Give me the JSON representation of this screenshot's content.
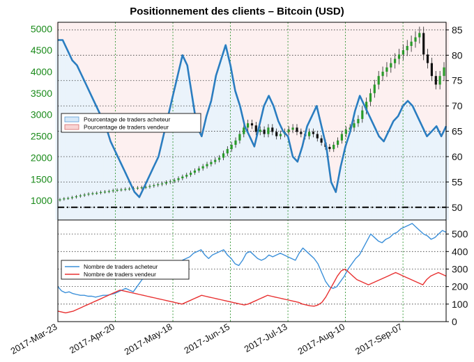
{
  "chart_data": [
    {
      "type": "candlestick",
      "title": "Positionnement des clients – Bitcoin (USD)",
      "price_axis": {
        "side": "left",
        "ticks": [
          1000,
          1500,
          2000,
          2500,
          3000,
          3500,
          4000,
          4500,
          5000
        ],
        "range": [
          550,
          5150
        ],
        "color": "#1a8a1a"
      },
      "percent_axis": {
        "side": "right",
        "ticks": [
          50,
          55,
          60,
          65,
          70,
          75,
          80,
          85
        ],
        "range": [
          47.5,
          86.5
        ]
      },
      "x_tick_labels": [
        "2017-Mar-23",
        "2017-Apr-20",
        "2017-May-18",
        "2017-Jun-15",
        "2017-Jul-13",
        "2017-Aug-10",
        "2017-Sep-07"
      ],
      "grid": true,
      "legend": {
        "position": "middle-left",
        "entries": [
          "Pourcentage de traders acheteur",
          "Pourcentage de traders vendeur"
        ]
      },
      "reference_line": 50,
      "price_close": [
        1030,
        1050,
        1060,
        1080,
        1100,
        1120,
        1140,
        1160,
        1170,
        1180,
        1200,
        1210,
        1220,
        1240,
        1250,
        1260,
        1270,
        1280,
        1290,
        1300,
        1310,
        1320,
        1340,
        1360,
        1380,
        1400,
        1430,
        1450,
        1480,
        1520,
        1560,
        1600,
        1650,
        1700,
        1750,
        1800,
        1850,
        1900,
        1950,
        2000,
        2100,
        2200,
        2300,
        2400,
        2550,
        2700,
        2800,
        2750,
        2600,
        2650,
        2550,
        2700,
        2600,
        2500,
        2550,
        2600,
        2650,
        2700,
        2600,
        2550,
        2500,
        2600,
        2550,
        2450,
        2350,
        2250,
        2200,
        2300,
        2400,
        2550,
        2650,
        2700,
        2800,
        2900,
        3100,
        3300,
        3500,
        3700,
        3900,
        4000,
        4100,
        4200,
        4300,
        4400,
        4500,
        4600,
        4700,
        4800,
        4900,
        4400,
        4200,
        3900,
        3700,
        3900,
        4100
      ],
      "long_percent": [
        83,
        83,
        81,
        79,
        78,
        76,
        74,
        72,
        70,
        68,
        66,
        63,
        61,
        59,
        57,
        55,
        53,
        52,
        54,
        56,
        58,
        60,
        64,
        68,
        72,
        76,
        80,
        78,
        72,
        66,
        64,
        68,
        71,
        76,
        79,
        82,
        78,
        73,
        70,
        66,
        64,
        62,
        66,
        70,
        72,
        70,
        67,
        65,
        64,
        60,
        59,
        62,
        66,
        68,
        70,
        66,
        62,
        55,
        53,
        58,
        62,
        65,
        69,
        72,
        70,
        68,
        66,
        64,
        63,
        65,
        67,
        68,
        70,
        71,
        70,
        68,
        66,
        64,
        65,
        66,
        64,
        66
      ]
    },
    {
      "type": "line",
      "y_ticks": [
        0,
        100,
        200,
        300,
        400,
        500
      ],
      "y_range": [
        0,
        580
      ],
      "legend": {
        "position": "middle-left"
      },
      "series": [
        {
          "name": "Nombre de traders acheteur",
          "color": "#3a8fd9",
          "values": [
            200,
            175,
            165,
            170,
            160,
            155,
            150,
            150,
            145,
            145,
            140,
            145,
            150,
            150,
            155,
            160,
            170,
            180,
            190,
            180,
            170,
            200,
            230,
            260,
            280,
            300,
            310,
            290,
            270,
            260,
            290,
            310,
            330,
            350,
            360,
            370,
            390,
            400,
            410,
            380,
            360,
            380,
            390,
            400,
            410,
            380,
            360,
            330,
            320,
            350,
            390,
            400,
            380,
            360,
            350,
            360,
            380,
            370,
            380,
            390,
            380,
            370,
            360,
            350,
            390,
            420,
            400,
            380,
            360,
            330,
            280,
            230,
            200,
            190,
            200,
            230,
            260,
            300,
            330,
            360,
            380,
            420,
            460,
            500,
            480,
            460,
            450,
            470,
            480,
            500,
            510,
            530,
            540,
            550,
            560,
            540,
            520,
            500,
            490,
            470,
            480,
            500,
            520,
            510
          ]
        },
        {
          "name": "Nombre de traders vendeur",
          "color": "#e83030",
          "values": [
            60,
            55,
            50,
            55,
            60,
            70,
            80,
            90,
            100,
            110,
            120,
            130,
            140,
            150,
            160,
            170,
            180,
            175,
            170,
            165,
            160,
            155,
            150,
            145,
            140,
            135,
            130,
            125,
            120,
            115,
            110,
            105,
            100,
            110,
            120,
            130,
            140,
            150,
            145,
            140,
            135,
            130,
            125,
            120,
            115,
            110,
            105,
            100,
            95,
            100,
            110,
            120,
            130,
            140,
            150,
            145,
            140,
            135,
            130,
            125,
            120,
            115,
            110,
            100,
            95,
            90,
            88,
            95,
            110,
            140,
            180,
            220,
            260,
            290,
            300,
            280,
            260,
            240,
            230,
            220,
            210,
            220,
            230,
            240,
            250,
            260,
            270,
            280,
            270,
            260,
            250,
            240,
            230,
            220,
            210,
            240,
            260,
            270,
            280,
            270,
            260
          ]
        }
      ]
    }
  ]
}
